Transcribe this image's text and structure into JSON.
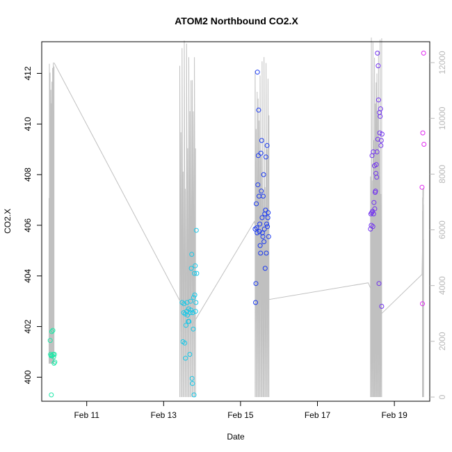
{
  "chart_data": {
    "type": "scatter",
    "title": "ATOM2 Northbound CO2.X",
    "xlabel": "Date",
    "ylabel": "CO2.X",
    "x_axis_unit": "day of February",
    "xlim": [
      9.83,
      19.92
    ],
    "ylim": [
      399.05,
      413.25
    ],
    "y2lim": [
      -150,
      12750
    ],
    "x_tick_values": [
      11,
      13,
      15,
      17,
      19
    ],
    "x_tick_labels": [
      "Feb 11",
      "Feb 13",
      "Feb 15",
      "Feb 17",
      "Feb 19"
    ],
    "y_tick_values": [
      400,
      402,
      404,
      406,
      408,
      410,
      412
    ],
    "y_tick_labels": [
      "400",
      "402",
      "404",
      "406",
      "408",
      "410",
      "412"
    ],
    "y2_tick_values": [
      0,
      2000,
      4000,
      6000,
      8000,
      10000,
      12000
    ],
    "y2_tick_labels": [
      "0",
      "2000",
      "4000",
      "6000",
      "8000",
      "10000",
      "12000"
    ],
    "grid": false,
    "legend": "none",
    "colors": {
      "background_line": "#c0c0c0",
      "right_axis": "#b8b8b8",
      "group_colors": [
        "#1ee8a8",
        "#16c8e8",
        "#1838f0",
        "#7030f0",
        "#e028f0"
      ]
    },
    "series": [
      {
        "values": [
          {
            "x": 10.05,
            "y": 401.45
          },
          {
            "x": 10.06,
            "y": 400.9
          },
          {
            "x": 10.07,
            "y": 400.85
          },
          {
            "x": 10.08,
            "y": 399.3
          },
          {
            "x": 10.09,
            "y": 401.8
          },
          {
            "x": 10.1,
            "y": 400.85
          },
          {
            "x": 10.12,
            "y": 401.85
          },
          {
            "x": 10.13,
            "y": 400.9
          },
          {
            "x": 10.14,
            "y": 400.8
          },
          {
            "x": 10.15,
            "y": 400.55
          },
          {
            "x": 10.16,
            "y": 400.9
          },
          {
            "x": 10.17,
            "y": 400.6
          }
        ]
      },
      {
        "values": [
          {
            "x": 13.48,
            "y": 402.95
          },
          {
            "x": 13.5,
            "y": 401.4
          },
          {
            "x": 13.52,
            "y": 402.55
          },
          {
            "x": 13.53,
            "y": 402.9
          },
          {
            "x": 13.55,
            "y": 401.35
          },
          {
            "x": 13.56,
            "y": 402.5
          },
          {
            "x": 13.57,
            "y": 400.75
          },
          {
            "x": 13.58,
            "y": 402.05
          },
          {
            "x": 13.6,
            "y": 402.6
          },
          {
            "x": 13.61,
            "y": 402.95
          },
          {
            "x": 13.62,
            "y": 402.45
          },
          {
            "x": 13.64,
            "y": 402.2
          },
          {
            "x": 13.65,
            "y": 402.7
          },
          {
            "x": 13.66,
            "y": 402.2
          },
          {
            "x": 13.68,
            "y": 400.9
          },
          {
            "x": 13.69,
            "y": 402.55
          },
          {
            "x": 13.7,
            "y": 403.0
          },
          {
            "x": 13.71,
            "y": 402.65
          },
          {
            "x": 13.72,
            "y": 404.3
          },
          {
            "x": 13.73,
            "y": 404.85
          },
          {
            "x": 13.74,
            "y": 399.95
          },
          {
            "x": 13.75,
            "y": 399.75
          },
          {
            "x": 13.76,
            "y": 402.55
          },
          {
            "x": 13.77,
            "y": 401.9
          },
          {
            "x": 13.78,
            "y": 403.15
          },
          {
            "x": 13.79,
            "y": 399.3
          },
          {
            "x": 13.8,
            "y": 404.1
          },
          {
            "x": 13.81,
            "y": 403.25
          },
          {
            "x": 13.82,
            "y": 404.4
          },
          {
            "x": 13.83,
            "y": 402.6
          },
          {
            "x": 13.84,
            "y": 402.95
          },
          {
            "x": 13.85,
            "y": 405.8
          },
          {
            "x": 13.86,
            "y": 404.1
          }
        ]
      },
      {
        "values": [
          {
            "x": 15.38,
            "y": 405.85
          },
          {
            "x": 15.39,
            "y": 402.95
          },
          {
            "x": 15.4,
            "y": 403.7
          },
          {
            "x": 15.41,
            "y": 406.85
          },
          {
            "x": 15.42,
            "y": 405.9
          },
          {
            "x": 15.43,
            "y": 405.7
          },
          {
            "x": 15.44,
            "y": 412.05
          },
          {
            "x": 15.45,
            "y": 407.6
          },
          {
            "x": 15.46,
            "y": 408.75
          },
          {
            "x": 15.47,
            "y": 410.55
          },
          {
            "x": 15.48,
            "y": 407.15
          },
          {
            "x": 15.49,
            "y": 405.75
          },
          {
            "x": 15.5,
            "y": 406.05
          },
          {
            "x": 15.51,
            "y": 405.2
          },
          {
            "x": 15.52,
            "y": 404.9
          },
          {
            "x": 15.53,
            "y": 408.85
          },
          {
            "x": 15.54,
            "y": 407.35
          },
          {
            "x": 15.55,
            "y": 409.35
          },
          {
            "x": 15.56,
            "y": 406.3
          },
          {
            "x": 15.57,
            "y": 405.7
          },
          {
            "x": 15.58,
            "y": 405.55
          },
          {
            "x": 15.59,
            "y": 407.15
          },
          {
            "x": 15.6,
            "y": 408.0
          },
          {
            "x": 15.61,
            "y": 405.35
          },
          {
            "x": 15.62,
            "y": 405.85
          },
          {
            "x": 15.63,
            "y": 406.45
          },
          {
            "x": 15.64,
            "y": 404.3
          },
          {
            "x": 15.65,
            "y": 406.6
          },
          {
            "x": 15.66,
            "y": 408.7
          },
          {
            "x": 15.67,
            "y": 404.9
          },
          {
            "x": 15.68,
            "y": 406.05
          },
          {
            "x": 15.69,
            "y": 409.15
          },
          {
            "x": 15.7,
            "y": 405.95
          },
          {
            "x": 15.71,
            "y": 406.3
          },
          {
            "x": 15.72,
            "y": 406.5
          },
          {
            "x": 15.73,
            "y": 405.55
          }
        ]
      },
      {
        "values": [
          {
            "x": 18.38,
            "y": 405.85
          },
          {
            "x": 18.39,
            "y": 406.45
          },
          {
            "x": 18.4,
            "y": 406.0
          },
          {
            "x": 18.41,
            "y": 406.5
          },
          {
            "x": 18.42,
            "y": 408.75
          },
          {
            "x": 18.43,
            "y": 406.55
          },
          {
            "x": 18.44,
            "y": 405.95
          },
          {
            "x": 18.45,
            "y": 408.9
          },
          {
            "x": 18.46,
            "y": 406.45
          },
          {
            "x": 18.47,
            "y": 406.9
          },
          {
            "x": 18.48,
            "y": 408.35
          },
          {
            "x": 18.49,
            "y": 406.65
          },
          {
            "x": 18.5,
            "y": 407.3
          },
          {
            "x": 18.51,
            "y": 407.35
          },
          {
            "x": 18.52,
            "y": 408.05
          },
          {
            "x": 18.53,
            "y": 408.4
          },
          {
            "x": 18.54,
            "y": 407.9
          },
          {
            "x": 18.55,
            "y": 408.9
          },
          {
            "x": 18.56,
            "y": 412.8
          },
          {
            "x": 18.57,
            "y": 409.4
          },
          {
            "x": 18.58,
            "y": 412.3
          },
          {
            "x": 18.59,
            "y": 410.95
          },
          {
            "x": 18.6,
            "y": 403.7
          },
          {
            "x": 18.61,
            "y": 410.45
          },
          {
            "x": 18.62,
            "y": 409.65
          },
          {
            "x": 18.63,
            "y": 410.3
          },
          {
            "x": 18.64,
            "y": 410.6
          },
          {
            "x": 18.65,
            "y": 409.15
          },
          {
            "x": 18.66,
            "y": 409.35
          },
          {
            "x": 18.67,
            "y": 402.8
          },
          {
            "x": 18.68,
            "y": 409.6
          }
        ]
      },
      {
        "values": [
          {
            "x": 19.72,
            "y": 407.5
          },
          {
            "x": 19.73,
            "y": 402.9
          },
          {
            "x": 19.74,
            "y": 409.65
          },
          {
            "x": 19.76,
            "y": 412.8
          },
          {
            "x": 19.77,
            "y": 409.2
          }
        ]
      }
    ],
    "secondary_series": {
      "type": "line",
      "axis": "right",
      "pulses": [
        {
          "start": 10.02,
          "end": 10.15,
          "high": 12000,
          "low": 1200
        },
        {
          "start": 13.42,
          "end": 13.83,
          "high": 12800,
          "low": 0
        },
        {
          "start": 15.38,
          "end": 15.74,
          "high": 12200,
          "low": 0
        },
        {
          "start": 18.38,
          "end": 18.67,
          "high": 12900,
          "low": 0
        },
        {
          "start": 19.73,
          "end": 19.76,
          "high": 7500,
          "low": 0
        }
      ],
      "baseline_path": [
        {
          "x": 10.15,
          "y": 12000
        },
        {
          "x": 13.75,
          "y": 2600
        },
        {
          "x": 15.36,
          "y": 6300
        },
        {
          "x": 15.74,
          "y": 3500
        },
        {
          "x": 18.32,
          "y": 4100
        },
        {
          "x": 18.67,
          "y": 3000
        },
        {
          "x": 19.72,
          "y": 4400
        },
        {
          "x": 19.76,
          "y": 7500
        }
      ]
    }
  }
}
